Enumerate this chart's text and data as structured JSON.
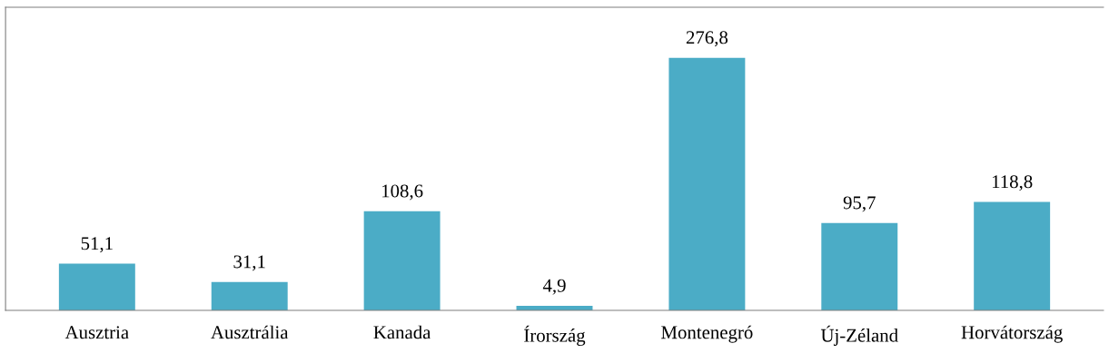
{
  "chart_data": {
    "type": "bar",
    "categories": [
      "Ausztria",
      "Ausztrália",
      "Kanada",
      "Írország",
      "Montenegró",
      "Új-Zéland",
      "Horvátország"
    ],
    "values": [
      51.1,
      31.1,
      108.6,
      4.9,
      276.8,
      95.7,
      118.8
    ],
    "value_labels": [
      "51,1",
      "31,1",
      "108,6",
      "4,9",
      "276,8",
      "95,7",
      "118,8"
    ],
    "color": "#4bacc6",
    "grid": false,
    "legend": false
  }
}
